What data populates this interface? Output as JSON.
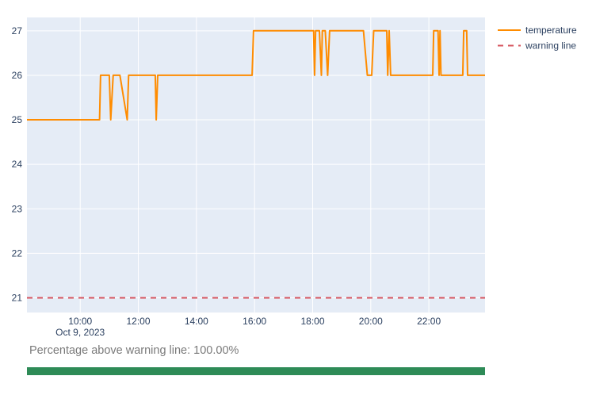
{
  "chart_data": {
    "type": "line",
    "x_date_label": "Oct 9, 2023",
    "x_ticks": [
      "10:00",
      "12:00",
      "14:00",
      "16:00",
      "18:00",
      "20:00",
      "22:00"
    ],
    "x_range": [
      "08:10",
      "23:56"
    ],
    "y_ticks": [
      21,
      22,
      23,
      24,
      25,
      26,
      27
    ],
    "ylim": [
      20.67,
      27.3
    ],
    "grid": true,
    "legend_position": "top-right",
    "series": [
      {
        "name": "temperature",
        "color": "#ff8c00",
        "points": [
          [
            "08:10",
            25
          ],
          [
            "10:40",
            25
          ],
          [
            "10:42",
            26
          ],
          [
            "11:00",
            26
          ],
          [
            "11:03",
            25
          ],
          [
            "11:08",
            26
          ],
          [
            "11:22",
            26
          ],
          [
            "11:37",
            25
          ],
          [
            "11:40",
            26
          ],
          [
            "12:35",
            26
          ],
          [
            "12:37",
            25
          ],
          [
            "12:40",
            26
          ],
          [
            "15:55",
            26
          ],
          [
            "15:58",
            27
          ],
          [
            "18:02",
            27
          ],
          [
            "18:04",
            26
          ],
          [
            "18:06",
            27
          ],
          [
            "18:14",
            27
          ],
          [
            "18:18",
            26
          ],
          [
            "18:20",
            27
          ],
          [
            "18:26",
            27
          ],
          [
            "18:31",
            26
          ],
          [
            "18:35",
            27
          ],
          [
            "19:45",
            27
          ],
          [
            "19:53",
            26
          ],
          [
            "20:02",
            26
          ],
          [
            "20:06",
            27
          ],
          [
            "20:33",
            27
          ],
          [
            "20:35",
            26
          ],
          [
            "20:38",
            27
          ],
          [
            "20:41",
            26
          ],
          [
            "22:08",
            26
          ],
          [
            "22:10",
            27
          ],
          [
            "22:19",
            27
          ],
          [
            "22:21",
            26
          ],
          [
            "22:23",
            27
          ],
          [
            "22:25",
            26
          ],
          [
            "23:10",
            26
          ],
          [
            "23:12",
            27
          ],
          [
            "23:18",
            27
          ],
          [
            "23:20",
            26
          ],
          [
            "23:56",
            26
          ]
        ]
      },
      {
        "name": "warning line",
        "color": "#d6545e",
        "dash": "dash",
        "points": [
          [
            "08:10",
            21
          ],
          [
            "23:56",
            21
          ]
        ]
      }
    ]
  },
  "stats": {
    "text": "Percentage above warning line: 100.00%",
    "percentage_above": 100,
    "bar_color": "#2e8b57"
  }
}
